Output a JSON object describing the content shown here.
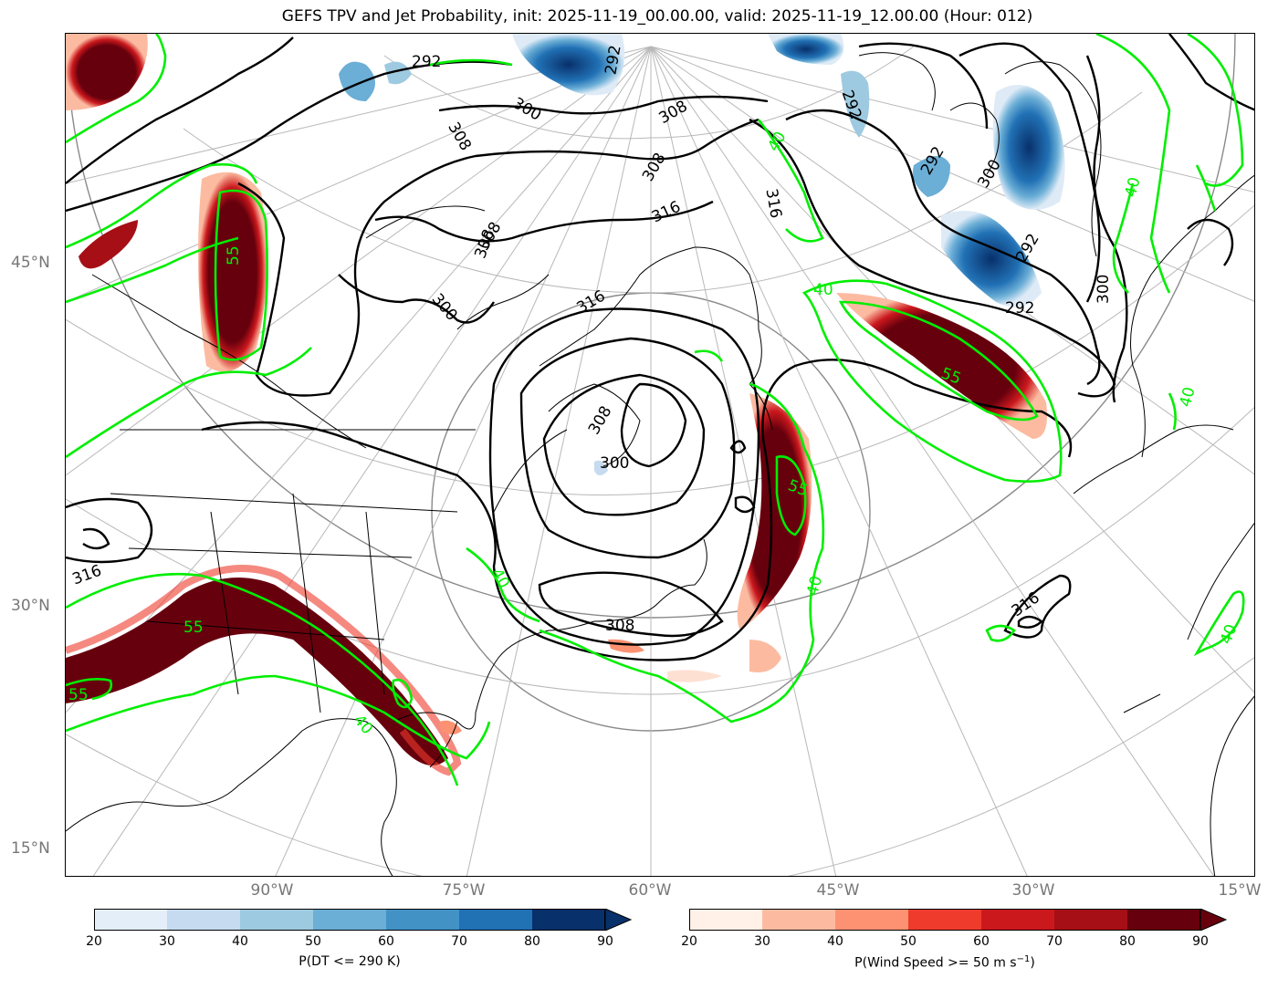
{
  "title": "GEFS TPV and Jet Probability, init: 2025-11-19_00.00.00, valid: 2025-11-19_12.00.00 (Hour: 012)",
  "lat_labels": [
    {
      "text": "45°N",
      "key": "lat45"
    },
    {
      "text": "30°N",
      "key": "lat30"
    },
    {
      "text": "15°N",
      "key": "lat15"
    }
  ],
  "lon_labels": [
    {
      "text": "90°W",
      "key": "lon90"
    },
    {
      "text": "75°W",
      "key": "lon75"
    },
    {
      "text": "60°W",
      "key": "lon60"
    },
    {
      "text": "45°W",
      "key": "lon45"
    },
    {
      "text": "30°W",
      "key": "lon30"
    },
    {
      "text": "15°W",
      "key": "lon15"
    }
  ],
  "contour_labels": {
    "theta": [
      "292",
      "292",
      "300",
      "308",
      "308",
      "300",
      "308",
      "316",
      "308",
      "316",
      "300",
      "316",
      "308",
      "300",
      "308",
      "316",
      "316",
      "292",
      "292",
      "292",
      "292",
      "300",
      "308"
    ],
    "jet": [
      "55",
      "55",
      "55",
      "55",
      "55",
      "40",
      "40",
      "40",
      "40",
      "40",
      "40",
      "40",
      "40"
    ]
  },
  "colorbar_dt": {
    "label": "P(DT <= 290 K)",
    "ticks": [
      "20",
      "30",
      "40",
      "50",
      "60",
      "70",
      "80",
      "90"
    ],
    "colors": [
      "#e3eef9",
      "#c6dbef",
      "#9ecae1",
      "#6baed6",
      "#4292c6",
      "#2171b5",
      "#08306b"
    ],
    "extend_color": "#08306b"
  },
  "colorbar_jet": {
    "label_prefix": "P(Wind Speed >= 50 m s",
    "label_sup": "−1",
    "label_suffix": ")",
    "ticks": [
      "20",
      "30",
      "40",
      "50",
      "60",
      "70",
      "80",
      "90"
    ],
    "colors": [
      "#fff0e8",
      "#fcbba1",
      "#fc9272",
      "#ef3b2c",
      "#cb181d",
      "#a50f15",
      "#67000d"
    ],
    "extend_color": "#67000d"
  },
  "colors": {
    "jet_contour": "#00ee00",
    "theta_contour": "#000000",
    "graticule": "#b0b0b0",
    "axis_label": "#777777"
  }
}
